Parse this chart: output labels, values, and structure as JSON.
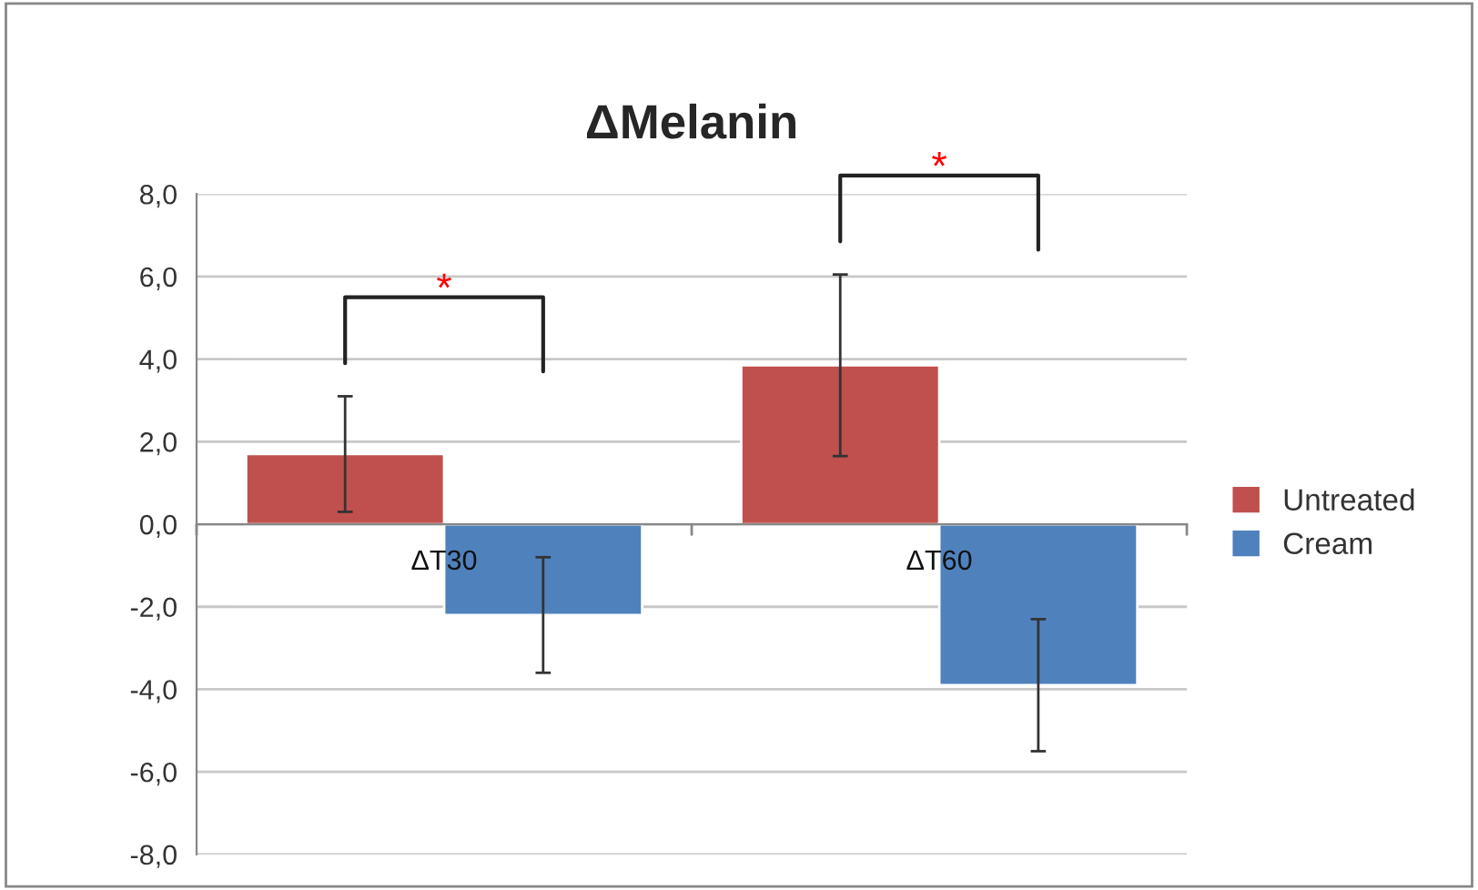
{
  "chart_data": {
    "type": "bar",
    "title": "ΔMelanin",
    "categories": [
      "ΔT30",
      "ΔT60"
    ],
    "series": [
      {
        "name": "Untreated",
        "color": "#c0504d",
        "values": [
          1.7,
          3.85
        ],
        "errors": [
          1.4,
          2.2
        ]
      },
      {
        "name": "Cream",
        "color": "#4f81bd",
        "values": [
          -2.2,
          -3.9
        ],
        "errors": [
          1.4,
          1.6
        ]
      }
    ],
    "ylim": [
      -8,
      8
    ],
    "yticks": [
      {
        "value": -8,
        "label": "-8,0"
      },
      {
        "value": -6,
        "label": "-6,0"
      },
      {
        "value": -4,
        "label": "-4,0"
      },
      {
        "value": -2,
        "label": "-2,0"
      },
      {
        "value": 0,
        "label": "0,0"
      },
      {
        "value": 2,
        "label": "2,0"
      },
      {
        "value": 4,
        "label": "4,0"
      },
      {
        "value": 6,
        "label": "6,0"
      },
      {
        "value": 8,
        "label": "8,0"
      }
    ],
    "annotations": [
      "*",
      "*"
    ],
    "grid": "y",
    "legend": "right"
  }
}
